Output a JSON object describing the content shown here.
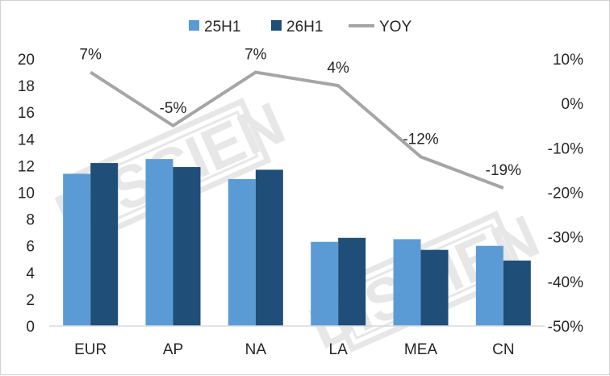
{
  "chart_data": {
    "type": "bar",
    "categories": [
      "EUR",
      "AP",
      "NA",
      "LA",
      "MEA",
      "CN"
    ],
    "series": [
      {
        "name": "25H1",
        "type": "bar",
        "axis": "left",
        "color": "#5B9BD5",
        "values": [
          11.4,
          12.5,
          11.0,
          6.3,
          6.5,
          6.0
        ]
      },
      {
        "name": "26H1",
        "type": "bar",
        "axis": "left",
        "color": "#1F4E79",
        "values": [
          12.2,
          11.9,
          11.7,
          6.6,
          5.7,
          4.9
        ]
      },
      {
        "name": "YOY",
        "type": "line",
        "axis": "right",
        "color": "#A5A5A5",
        "values": [
          7,
          -5,
          7,
          4,
          -12,
          -19
        ],
        "labels": [
          "7%",
          "-5%",
          "7%",
          "4%",
          "-12%",
          "-19%"
        ]
      }
    ],
    "y_left": {
      "min": 0,
      "max": 20,
      "step": 2,
      "ticks": [
        "0",
        "2",
        "4",
        "6",
        "8",
        "10",
        "12",
        "14",
        "16",
        "18",
        "20"
      ]
    },
    "y_right": {
      "min": -50,
      "max": 10,
      "step": 10,
      "ticks": [
        "-50%",
        "-40%",
        "-30%",
        "-20%",
        "-10%",
        "0%",
        "10%"
      ]
    },
    "legend_position": "top",
    "grid": false
  },
  "watermark": "DISCIEN"
}
